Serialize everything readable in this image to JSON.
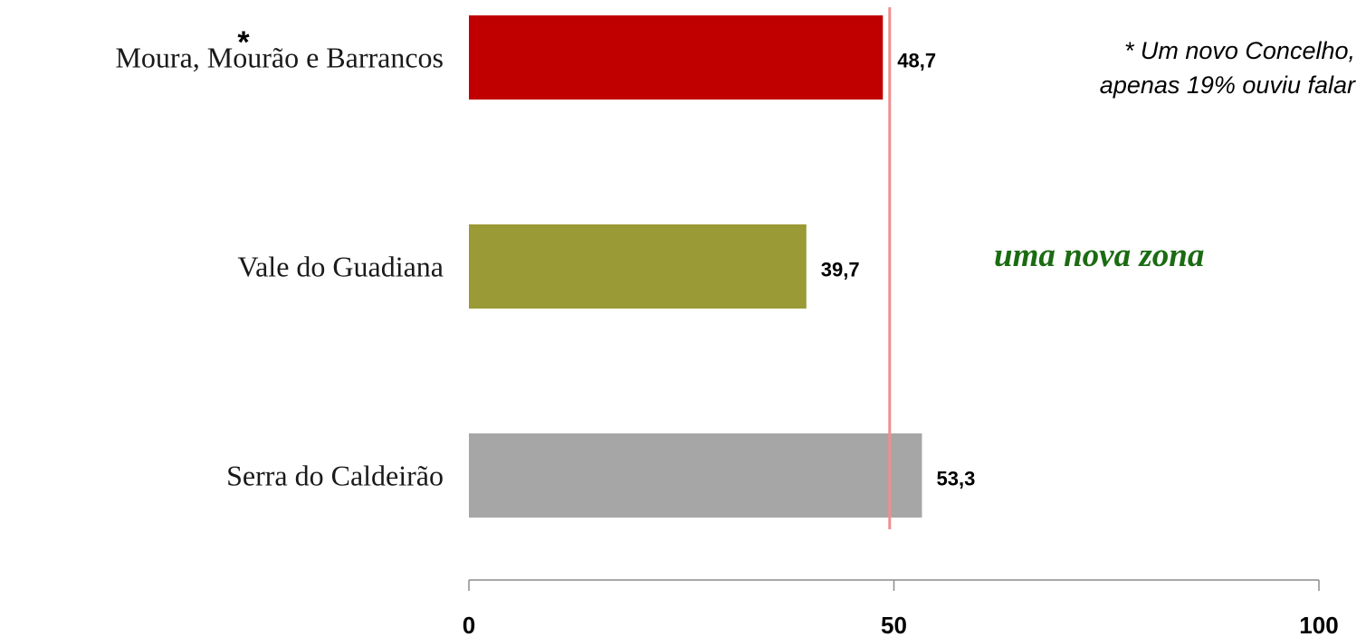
{
  "chart_data": {
    "type": "bar",
    "orientation": "horizontal",
    "categories": [
      "Moura, Mourão e Barrancos",
      "Vale do Guadiana",
      "Serra do Caldeirão"
    ],
    "values": [
      48.7,
      39.7,
      53.3
    ],
    "value_labels": [
      "48,7",
      "39,7",
      "53,3"
    ],
    "category_marker": {
      "category_index": 0,
      "symbol": "*"
    },
    "colors": [
      "#c00000",
      "#9a9a36",
      "#a6a6a6"
    ],
    "xlim": [
      0,
      100
    ],
    "xticks": [
      0,
      50,
      100
    ],
    "xtick_labels": [
      "0",
      "50",
      "100"
    ],
    "reference_line": {
      "value": 49.5,
      "color": "#f08f8f"
    },
    "grid": false,
    "legend": "none"
  },
  "annotations": {
    "footnote_lines": [
      "* Um novo Concelho,",
      "apenas 19% ouviu falar"
    ],
    "highlight": "uma nova zona"
  }
}
